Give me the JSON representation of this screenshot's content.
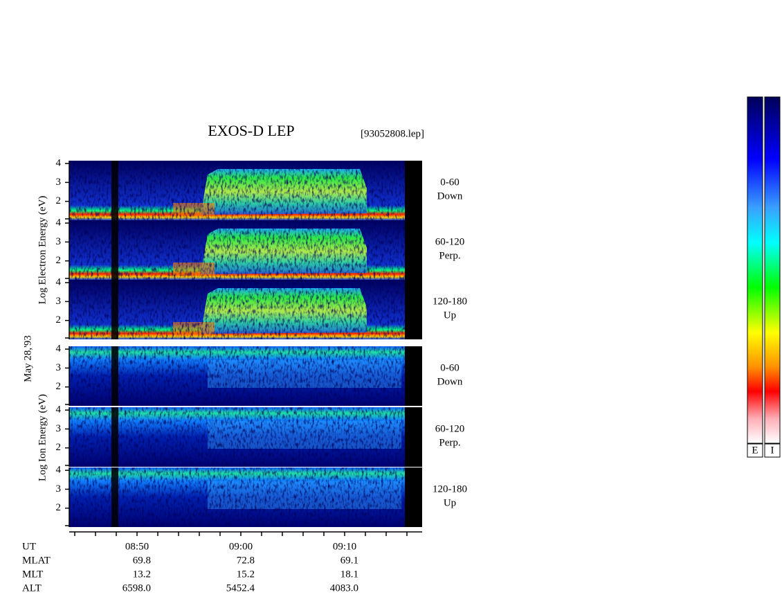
{
  "chart_data": {
    "type": "spectrogram",
    "title": "EXOS-D LEP",
    "file_label": "[93052808.lep]",
    "date_label": "May 28,'93",
    "groups": [
      {
        "ylabel": "Log Electron Energy (eV)"
      },
      {
        "ylabel": "Log Ion Energy (eV)"
      }
    ],
    "panels": [
      {
        "group": 0,
        "angle": "0-60",
        "direction": "Down"
      },
      {
        "group": 0,
        "angle": "60-120",
        "direction": "Perp."
      },
      {
        "group": 0,
        "angle": "120-180",
        "direction": "Up"
      },
      {
        "group": 1,
        "angle": "0-60",
        "direction": "Down"
      },
      {
        "group": 1,
        "angle": "60-120",
        "direction": "Perp."
      },
      {
        "group": 1,
        "angle": "120-180",
        "direction": "Up"
      }
    ],
    "ylim": [
      1,
      4.15
    ],
    "yticks": [
      2,
      3,
      4
    ],
    "x_labels": [
      "08:50",
      "09:00",
      "09:10"
    ],
    "orbit": [
      {
        "name": "UT"
      },
      {
        "name": "MLAT",
        "values": [
          "69.8",
          "72.8",
          "69.1"
        ]
      },
      {
        "name": "MLT",
        "values": [
          "13.2",
          "15.2",
          "18.1"
        ]
      },
      {
        "name": "ALT",
        "values": [
          "6598.0",
          "5452.4",
          "4083.0"
        ]
      }
    ],
    "colorbars": [
      "E",
      "I"
    ]
  }
}
